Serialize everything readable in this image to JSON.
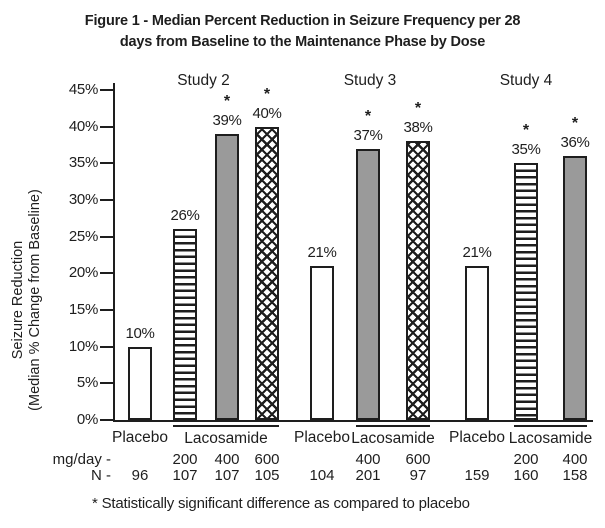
{
  "figure": {
    "title_lines": [
      "Figure 1 - Median Percent Reduction in Seizure Frequency per 28",
      "days from Baseline to the Maintenance Phase by Dose"
    ]
  },
  "chart_data": {
    "type": "bar",
    "title": "Figure 1 - Median Percent Reduction in Seizure Frequency per 28 days from Baseline to the Maintenance Phase by Dose",
    "ylabel_lines": [
      "Seizure Reduction",
      "(Median % Change from Baseline)"
    ],
    "ylim": [
      0,
      45
    ],
    "ytick_interval": 5,
    "yticks": [
      "45%",
      "40%",
      "35%",
      "30%",
      "25%",
      "20%",
      "15%",
      "10%",
      "5%",
      "0%"
    ],
    "grid": false,
    "legend": false,
    "significance_marker": "*",
    "footnote": "* Statistically significant difference as compared to placebo",
    "row_labels": {
      "dose": "mg/day -",
      "n": "N -"
    },
    "groups": [
      {
        "study": "Study 2",
        "placebo_label": "Placebo",
        "treatment_label": "Lacosamide",
        "bars": [
          {
            "arm": "Placebo",
            "dose_mg_day": "",
            "n": "96",
            "value": 10,
            "label": "10%",
            "pattern": "open",
            "significant": false
          },
          {
            "arm": "Lacosamide",
            "dose_mg_day": "200",
            "n": "107",
            "value": 26,
            "label": "26%",
            "pattern": "horizontal-stripes",
            "significant": false
          },
          {
            "arm": "Lacosamide",
            "dose_mg_day": "400",
            "n": "107",
            "value": 39,
            "label": "39%",
            "pattern": "solid-gray",
            "significant": true
          },
          {
            "arm": "Lacosamide",
            "dose_mg_day": "600",
            "n": "105",
            "value": 40,
            "label": "40%",
            "pattern": "crosshatch",
            "significant": true
          }
        ]
      },
      {
        "study": "Study 3",
        "placebo_label": "Placebo",
        "treatment_label": "Lacosamide",
        "bars": [
          {
            "arm": "Placebo",
            "dose_mg_day": "",
            "n": "104",
            "value": 21,
            "label": "21%",
            "pattern": "open",
            "significant": false
          },
          {
            "arm": "Lacosamide",
            "dose_mg_day": "400",
            "n": "201",
            "value": 37,
            "label": "37%",
            "pattern": "solid-gray",
            "significant": true
          },
          {
            "arm": "Lacosamide",
            "dose_mg_day": "600",
            "n": "97",
            "value": 38,
            "label": "38%",
            "pattern": "crosshatch",
            "significant": true
          }
        ]
      },
      {
        "study": "Study 4",
        "placebo_label": "Placebo",
        "treatment_label": "Lacosamide",
        "bars": [
          {
            "arm": "Placebo",
            "dose_mg_day": "",
            "n": "159",
            "value": 21,
            "label": "21%",
            "pattern": "open",
            "significant": false
          },
          {
            "arm": "Lacosamide",
            "dose_mg_day": "200",
            "n": "160",
            "value": 35,
            "label": "35%",
            "pattern": "horizontal-stripes",
            "significant": true
          },
          {
            "arm": "Lacosamide",
            "dose_mg_day": "400",
            "n": "158",
            "value": 36,
            "label": "36%",
            "pattern": "solid-gray",
            "significant": true
          }
        ]
      }
    ],
    "colors": {
      "ink": "#1e1e1e",
      "gray_bar": "#9a9a9a",
      "white_bar": "#ffffff",
      "background": "#ffffff"
    }
  }
}
